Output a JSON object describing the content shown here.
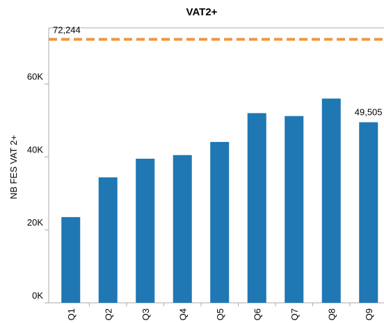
{
  "chart_data": {
    "type": "bar",
    "title": "VAT2+",
    "y_label": "NB FES VAT 2+",
    "categories": [
      "Q1",
      "Q2",
      "Q3",
      "Q4",
      "Q5",
      "Q6",
      "Q7",
      "Q8",
      "Q9"
    ],
    "values": [
      23500,
      34400,
      39500,
      40500,
      44100,
      52000,
      51200,
      56000,
      49505
    ],
    "value_labels": [
      null,
      null,
      null,
      null,
      null,
      null,
      null,
      null,
      "49,505"
    ],
    "color": "#1f77b4",
    "ylim": [
      0,
      75000
    ],
    "yticks": [
      {
        "value": 0,
        "label": "0K"
      },
      {
        "value": 20000,
        "label": "20K"
      },
      {
        "value": 40000,
        "label": "40K"
      },
      {
        "value": 60000,
        "label": "60K"
      }
    ],
    "grid": false,
    "reference_line": {
      "value": 72244,
      "label": "72,244",
      "color": "#f0963c"
    }
  }
}
